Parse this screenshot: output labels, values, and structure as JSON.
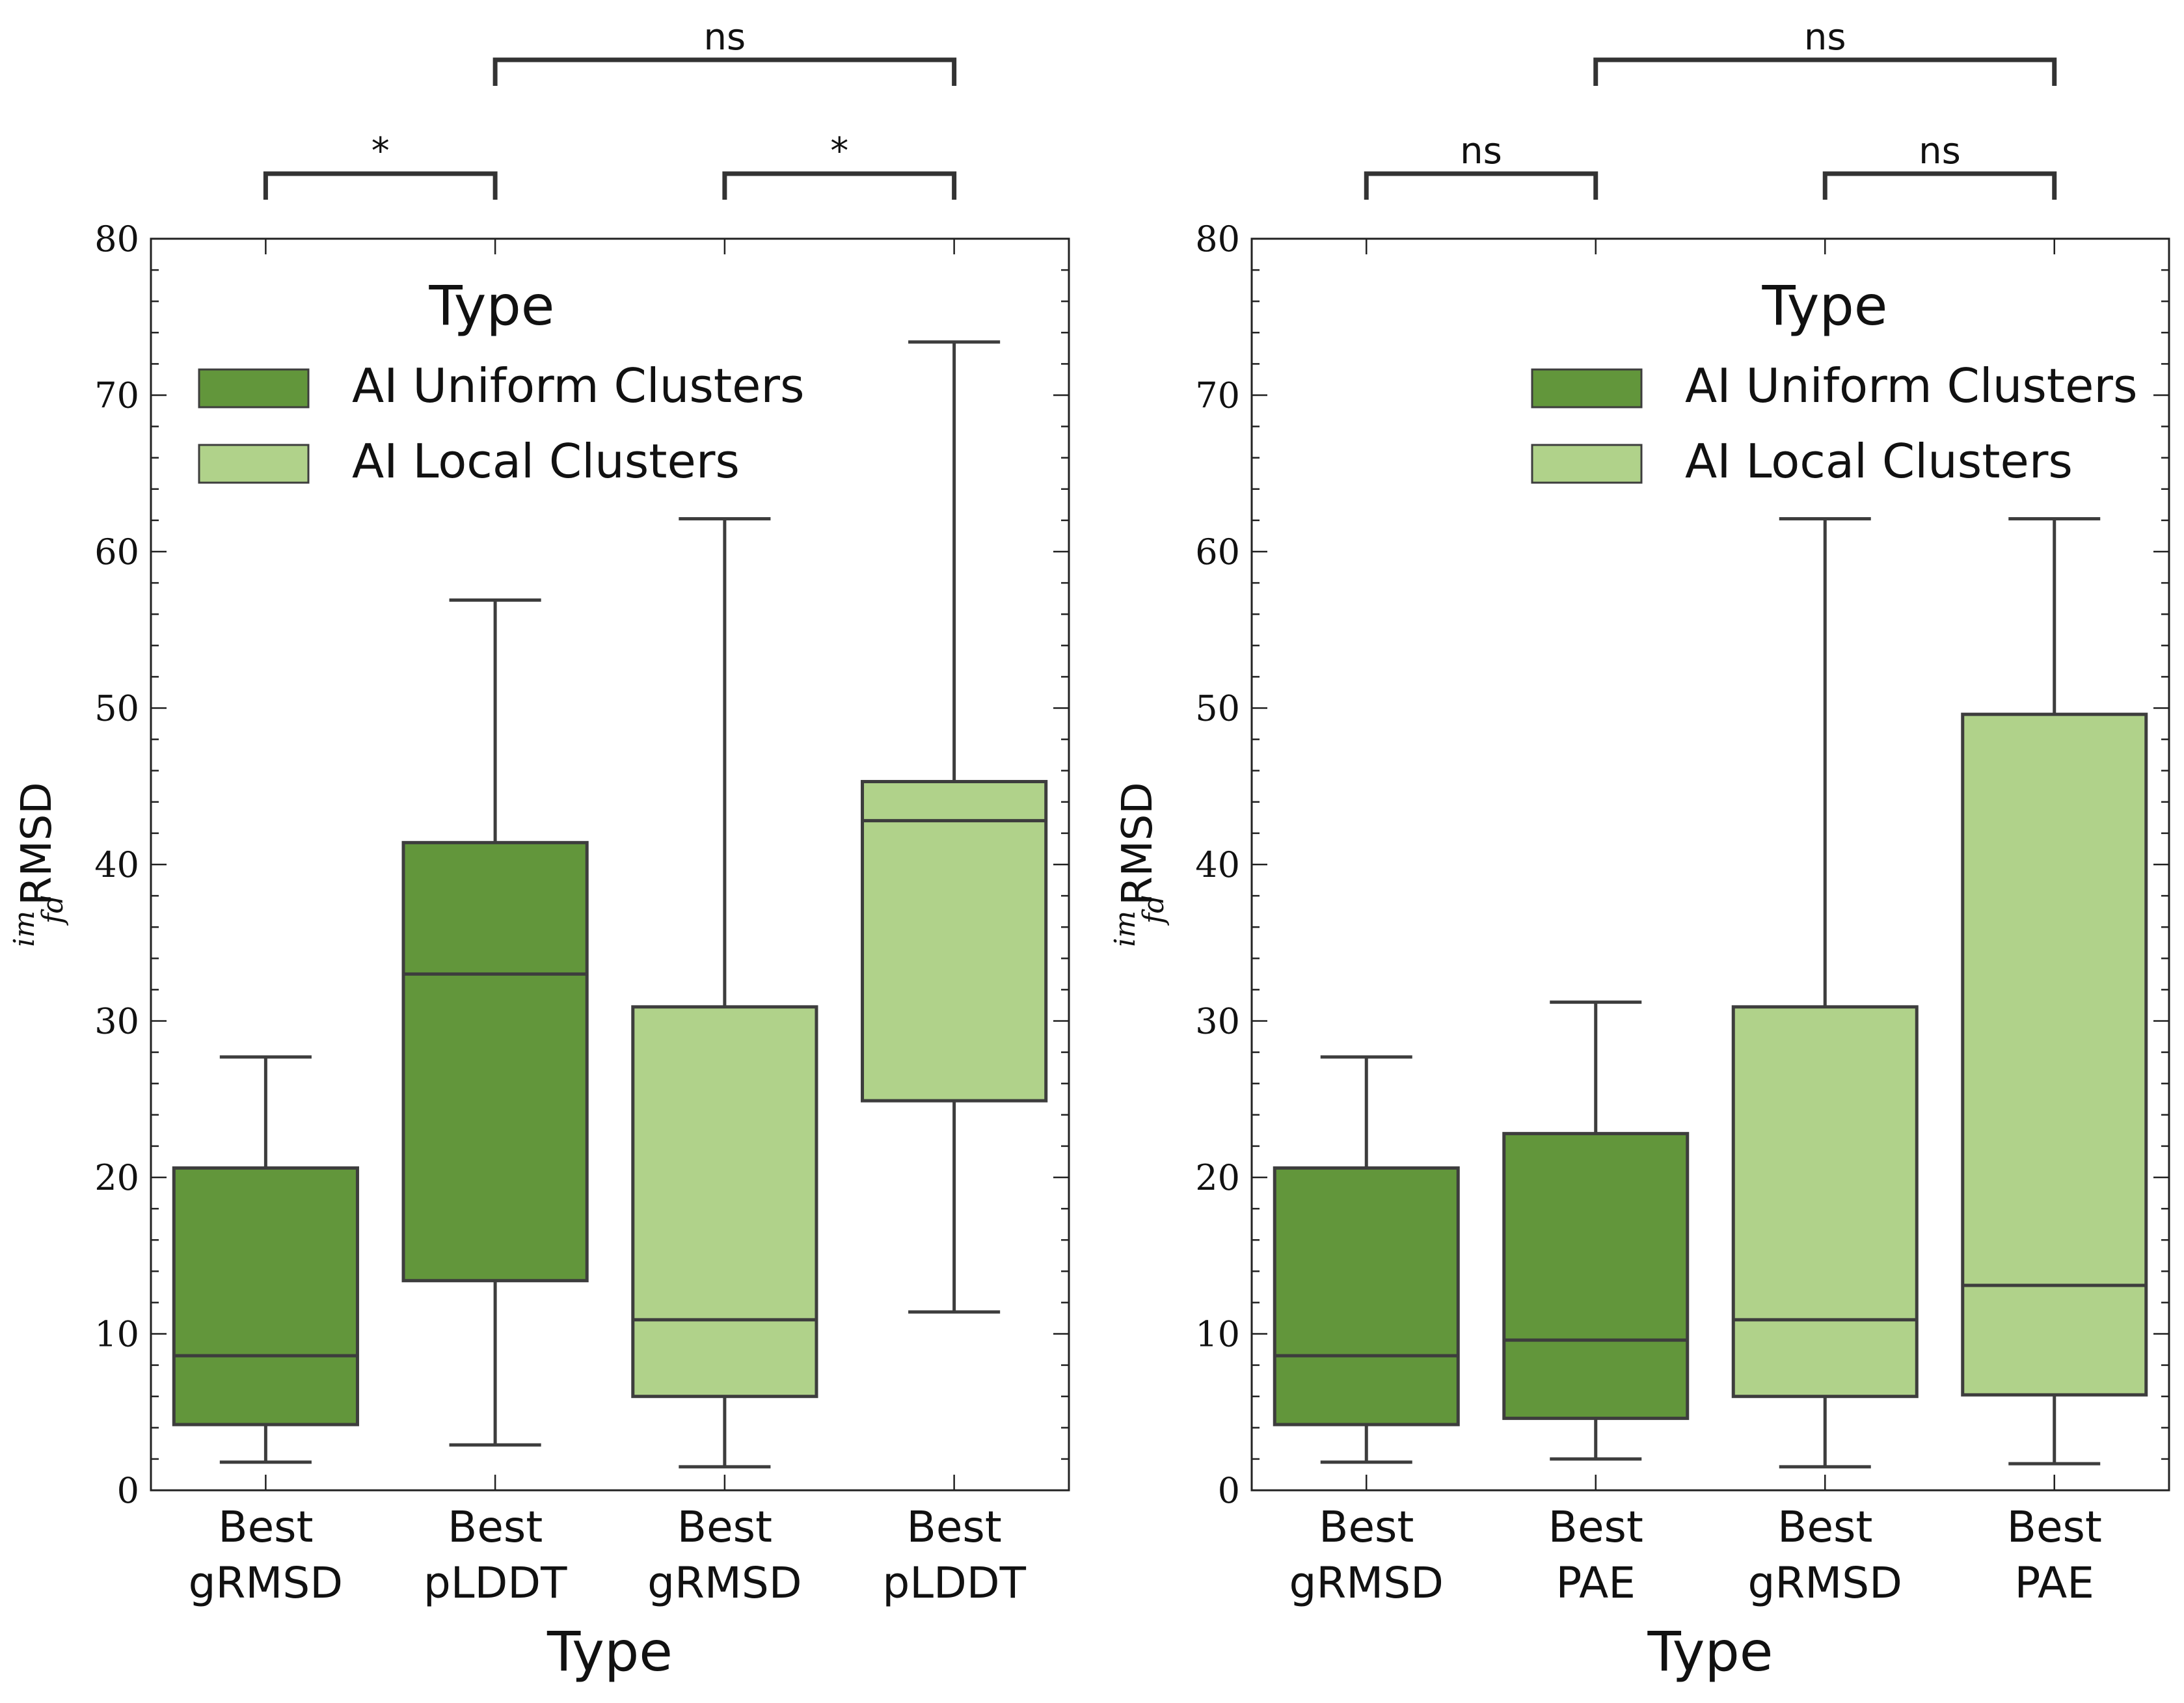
{
  "chart_data": [
    {
      "type": "box",
      "xlabel": "Type",
      "ylabel_main": "RMSD",
      "ylabel_sup": "im",
      "ylabel_sub": "fd",
      "ylim": [
        0,
        80
      ],
      "yticks": [
        0,
        10,
        20,
        30,
        40,
        50,
        60,
        70,
        80
      ],
      "legend": {
        "title": "Type",
        "position": "upper-left",
        "entries": [
          {
            "label": "AI Uniform Clusters",
            "color": "#62963b"
          },
          {
            "label": "AI Local Clusters",
            "color": "#b0d28a"
          }
        ]
      },
      "categories": [
        {
          "line1": "Best",
          "line2": "gRMSD"
        },
        {
          "line1": "Best",
          "line2": "pLDDT"
        },
        {
          "line1": "Best",
          "line2": "gRMSD"
        },
        {
          "line1": "Best",
          "line2": "pLDDT"
        }
      ],
      "boxes": [
        {
          "series": 0,
          "whislo": 1.8,
          "q1": 4.2,
          "med": 8.6,
          "q3": 20.6,
          "whishi": 27.7
        },
        {
          "series": 0,
          "whislo": 2.9,
          "q1": 13.4,
          "med": 33.0,
          "q3": 41.4,
          "whishi": 56.9
        },
        {
          "series": 1,
          "whislo": 1.5,
          "q1": 6.0,
          "med": 10.9,
          "q3": 30.9,
          "whishi": 62.1
        },
        {
          "series": 1,
          "whislo": 11.4,
          "q1": 24.9,
          "med": 42.8,
          "q3": 45.3,
          "whishi": 73.4
        }
      ],
      "annotations": [
        {
          "from": 0,
          "to": 1,
          "level": 1,
          "text": "*"
        },
        {
          "from": 2,
          "to": 3,
          "level": 1,
          "text": "*"
        },
        {
          "from": 1,
          "to": 3,
          "level": 2,
          "text": "ns"
        }
      ]
    },
    {
      "type": "box",
      "xlabel": "Type",
      "ylabel_main": "RMSD",
      "ylabel_sup": "im",
      "ylabel_sub": "fd",
      "ylim": [
        0,
        80
      ],
      "yticks": [
        0,
        10,
        20,
        30,
        40,
        50,
        60,
        70,
        80
      ],
      "legend": {
        "title": "Type",
        "position": "upper-right",
        "entries": [
          {
            "label": "AI Uniform Clusters",
            "color": "#62963b"
          },
          {
            "label": "AI Local Clusters",
            "color": "#b0d28a"
          }
        ]
      },
      "categories": [
        {
          "line1": "Best",
          "line2": "gRMSD"
        },
        {
          "line1": "Best",
          "line2": "PAE"
        },
        {
          "line1": "Best",
          "line2": "gRMSD"
        },
        {
          "line1": "Best",
          "line2": "PAE"
        }
      ],
      "boxes": [
        {
          "series": 0,
          "whislo": 1.8,
          "q1": 4.2,
          "med": 8.6,
          "q3": 20.6,
          "whishi": 27.7
        },
        {
          "series": 0,
          "whislo": 2.0,
          "q1": 4.6,
          "med": 9.6,
          "q3": 22.8,
          "whishi": 31.2
        },
        {
          "series": 1,
          "whislo": 1.5,
          "q1": 6.0,
          "med": 10.9,
          "q3": 30.9,
          "whishi": 62.1
        },
        {
          "series": 1,
          "whislo": 1.7,
          "q1": 6.1,
          "med": 13.1,
          "q3": 49.6,
          "whishi": 62.1
        }
      ],
      "annotations": [
        {
          "from": 0,
          "to": 1,
          "level": 1,
          "text": "ns"
        },
        {
          "from": 2,
          "to": 3,
          "level": 1,
          "text": "ns"
        },
        {
          "from": 1,
          "to": 3,
          "level": 2,
          "text": "ns"
        }
      ]
    }
  ]
}
